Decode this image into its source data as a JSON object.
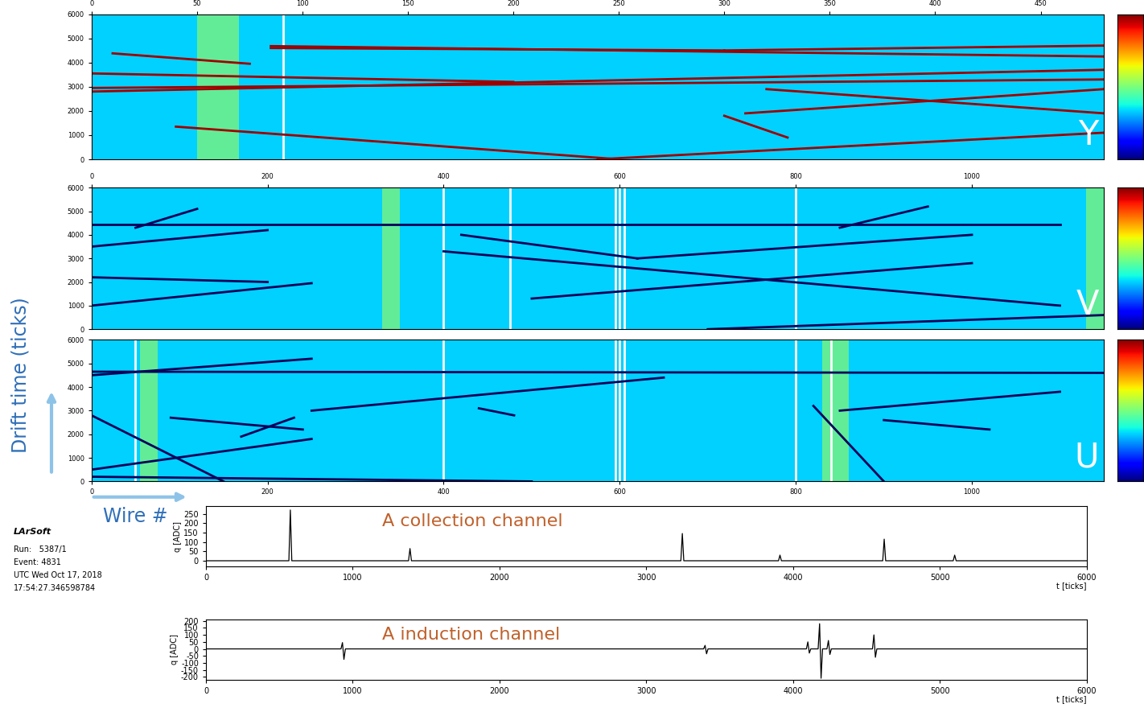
{
  "chart_data": [
    {
      "type": "event_display",
      "title": "Y",
      "xlim": [
        0,
        480
      ],
      "xticks": [
        0,
        50,
        100,
        150,
        200,
        250,
        300,
        350,
        400,
        450
      ],
      "ylim": [
        0,
        6000
      ],
      "yticks": [
        0,
        1000,
        2000,
        3000,
        4000,
        5000,
        6000
      ],
      "color": "#a00000",
      "dead_wires": [
        91
      ],
      "noisy_wires": [
        [
          50,
          70
        ]
      ],
      "tracks": [
        [
          [
            85,
            4680
          ],
          [
            480,
            4250
          ]
        ],
        [
          [
            85,
            4600
          ],
          [
            300,
            4500
          ]
        ],
        [
          [
            300,
            4500
          ],
          [
            480,
            4700
          ]
        ],
        [
          [
            0,
            2800
          ],
          [
            480,
            3700
          ]
        ],
        [
          [
            0,
            3550
          ],
          [
            200,
            3200
          ]
        ],
        [
          [
            10,
            4380
          ],
          [
            75,
            3950
          ]
        ],
        [
          [
            40,
            1350
          ],
          [
            250,
            0
          ]
        ],
        [
          [
            240,
            0
          ],
          [
            480,
            1100
          ]
        ],
        [
          [
            310,
            1900
          ],
          [
            480,
            2900
          ]
        ],
        [
          [
            320,
            2900
          ],
          [
            480,
            1900
          ]
        ],
        [
          [
            300,
            1800
          ],
          [
            330,
            900
          ]
        ],
        [
          [
            0,
            2950
          ],
          [
            480,
            3300
          ]
        ]
      ]
    },
    {
      "type": "event_display",
      "title": "V",
      "xlim": [
        0,
        1150
      ],
      "xticks": [
        0,
        200,
        400,
        600,
        800,
        1000
      ],
      "ylim": [
        0,
        6000
      ],
      "yticks": [
        0,
        1000,
        2000,
        3000,
        4000,
        5000,
        6000
      ],
      "color": "#00005a",
      "dead_wires": [
        400,
        475,
        595,
        600,
        605,
        800
      ],
      "noisy_wires": [
        [
          330,
          350
        ],
        [
          1130,
          1150
        ]
      ],
      "tracks": [
        [
          [
            0,
            4450
          ],
          [
            1100,
            4450
          ]
        ],
        [
          [
            0,
            3500
          ],
          [
            200,
            4200
          ]
        ],
        [
          [
            50,
            4300
          ],
          [
            120,
            5100
          ]
        ],
        [
          [
            420,
            4000
          ],
          [
            620,
            3000
          ]
        ],
        [
          [
            620,
            3000
          ],
          [
            1000,
            4000
          ]
        ],
        [
          [
            400,
            3300
          ],
          [
            1100,
            1000
          ]
        ],
        [
          [
            500,
            1300
          ],
          [
            1000,
            2800
          ]
        ],
        [
          [
            0,
            1000
          ],
          [
            250,
            1950
          ]
        ],
        [
          [
            0,
            2200
          ],
          [
            200,
            2000
          ]
        ],
        [
          [
            700,
            0
          ],
          [
            1150,
            600
          ]
        ],
        [
          [
            850,
            4300
          ],
          [
            950,
            5200
          ]
        ]
      ]
    },
    {
      "type": "event_display",
      "title": "U",
      "xlim": [
        0,
        1150
      ],
      "xticks": [
        0,
        200,
        400,
        600,
        800,
        1000
      ],
      "ylim": [
        0,
        6000
      ],
      "yticks": [
        0,
        1000,
        2000,
        3000,
        4000,
        5000,
        6000
      ],
      "color": "#00005a",
      "dead_wires": [
        50,
        400,
        595,
        600,
        605,
        800,
        840
      ],
      "noisy_wires": [
        [
          55,
          75
        ],
        [
          830,
          860
        ]
      ],
      "tracks": [
        [
          [
            0,
            4500
          ],
          [
            250,
            5200
          ]
        ],
        [
          [
            0,
            4650
          ],
          [
            1150,
            4600
          ]
        ],
        [
          [
            0,
            2800
          ],
          [
            150,
            0
          ]
        ],
        [
          [
            90,
            2700
          ],
          [
            240,
            2200
          ]
        ],
        [
          [
            170,
            1900
          ],
          [
            230,
            2700
          ]
        ],
        [
          [
            0,
            500
          ],
          [
            250,
            1800
          ]
        ],
        [
          [
            250,
            3000
          ],
          [
            650,
            4400
          ]
        ],
        [
          [
            440,
            3100
          ],
          [
            480,
            2800
          ]
        ],
        [
          [
            820,
            3200
          ],
          [
            900,
            0
          ]
        ],
        [
          [
            850,
            3000
          ],
          [
            1100,
            3800
          ]
        ],
        [
          [
            900,
            2600
          ],
          [
            1020,
            2200
          ]
        ],
        [
          [
            0,
            200
          ],
          [
            500,
            0
          ]
        ]
      ]
    },
    {
      "type": "line",
      "title": "A collection channel",
      "x_label": "t [ticks]",
      "y_label": "q [ADC]",
      "color": "#000000",
      "x": [
        0,
        565,
        575,
        585,
        1380,
        1390,
        1400,
        3235,
        3245,
        3255,
        3900,
        3910,
        3920,
        4610,
        4620,
        4630,
        5090,
        5100,
        5110,
        6000
      ],
      "values": [
        0,
        0,
        270,
        0,
        0,
        65,
        0,
        0,
        145,
        0,
        0,
        30,
        0,
        0,
        115,
        0,
        0,
        30,
        0,
        0
      ],
      "xlim": [
        0,
        6000
      ],
      "xticks": [
        0,
        1000,
        2000,
        3000,
        4000,
        5000,
        6000
      ],
      "ylim": [
        -30,
        290
      ],
      "yticks": [
        0,
        50,
        100,
        150,
        200,
        250
      ]
    },
    {
      "type": "line",
      "title": "A induction channel",
      "x_label": "t [ticks]",
      "y_label": "q [ADC]",
      "color": "#000000",
      "x": [
        0,
        920,
        930,
        940,
        950,
        3390,
        3400,
        3410,
        3420,
        4090,
        4100,
        4110,
        4120,
        4170,
        4180,
        4190,
        4200,
        4230,
        4240,
        4250,
        4260,
        4540,
        4550,
        4560,
        4570,
        6000
      ],
      "values": [
        0,
        0,
        45,
        -75,
        0,
        0,
        25,
        -35,
        0,
        0,
        50,
        -30,
        0,
        0,
        180,
        -210,
        0,
        0,
        60,
        -40,
        0,
        0,
        100,
        -60,
        0,
        0
      ],
      "xlim": [
        0,
        6000
      ],
      "xticks": [
        0,
        1000,
        2000,
        3000,
        4000,
        5000,
        6000
      ],
      "ylim": [
        -220,
        210
      ],
      "yticks": [
        -200,
        -150,
        -100,
        -50,
        0,
        50,
        100,
        150,
        200
      ]
    }
  ],
  "y_label": "Drift time (ticks)",
  "x_label": "Wire #",
  "info": [
    "LArSoft",
    "Run:   5387/1",
    "Event: 4831",
    "UTC Wed Oct 17, 2018",
    "17:54:27.346598784"
  ]
}
